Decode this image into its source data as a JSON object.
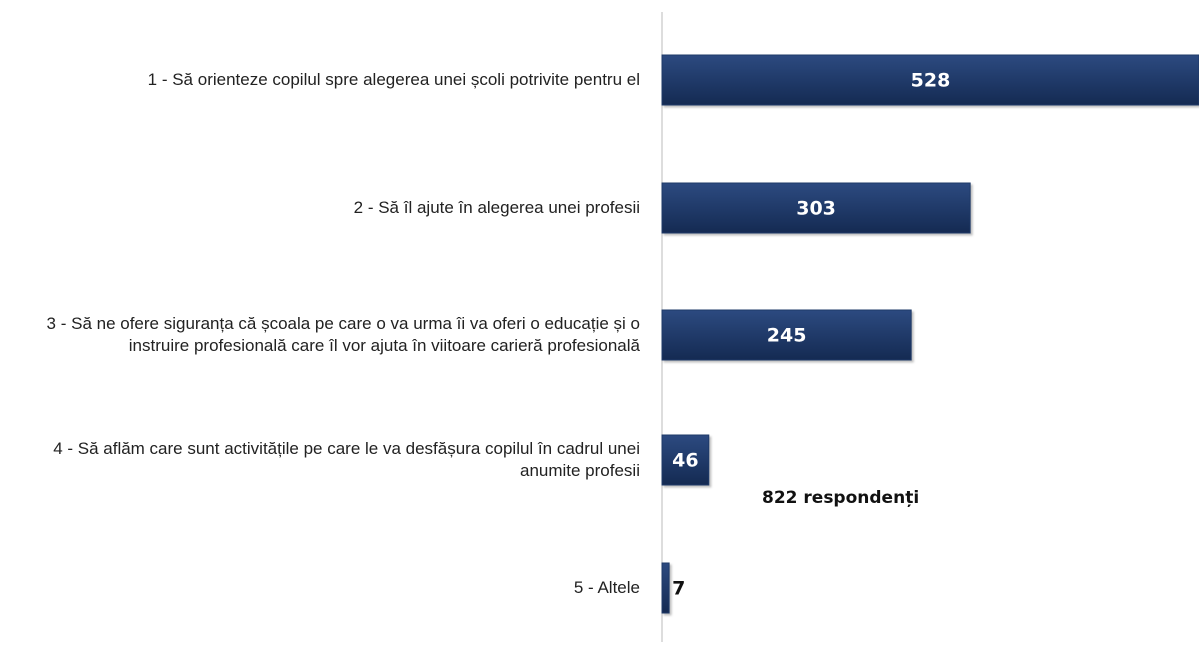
{
  "chart_data": {
    "type": "bar",
    "orientation": "horizontal",
    "categories": [
      "1 - Să orienteze copilul spre alegerea unei școli potrivite pentru el",
      "2 - Să îl ajute în alegerea unei profesii",
      "3 - Să ne ofere siguranța că școala pe care o va urma îi va oferi o educație și o instruire profesională care îl vor ajuta în viitoare carieră profesională",
      "4 - Să aflăm care sunt activitățile pe care le va desfășura copilul în cadrul unei anumite profesii",
      "5 - Altele"
    ],
    "values": [
      528,
      303,
      245,
      46,
      7
    ],
    "color": "#1f3a68",
    "xlim": [
      0,
      528
    ],
    "annotation": "822 respondenți"
  }
}
